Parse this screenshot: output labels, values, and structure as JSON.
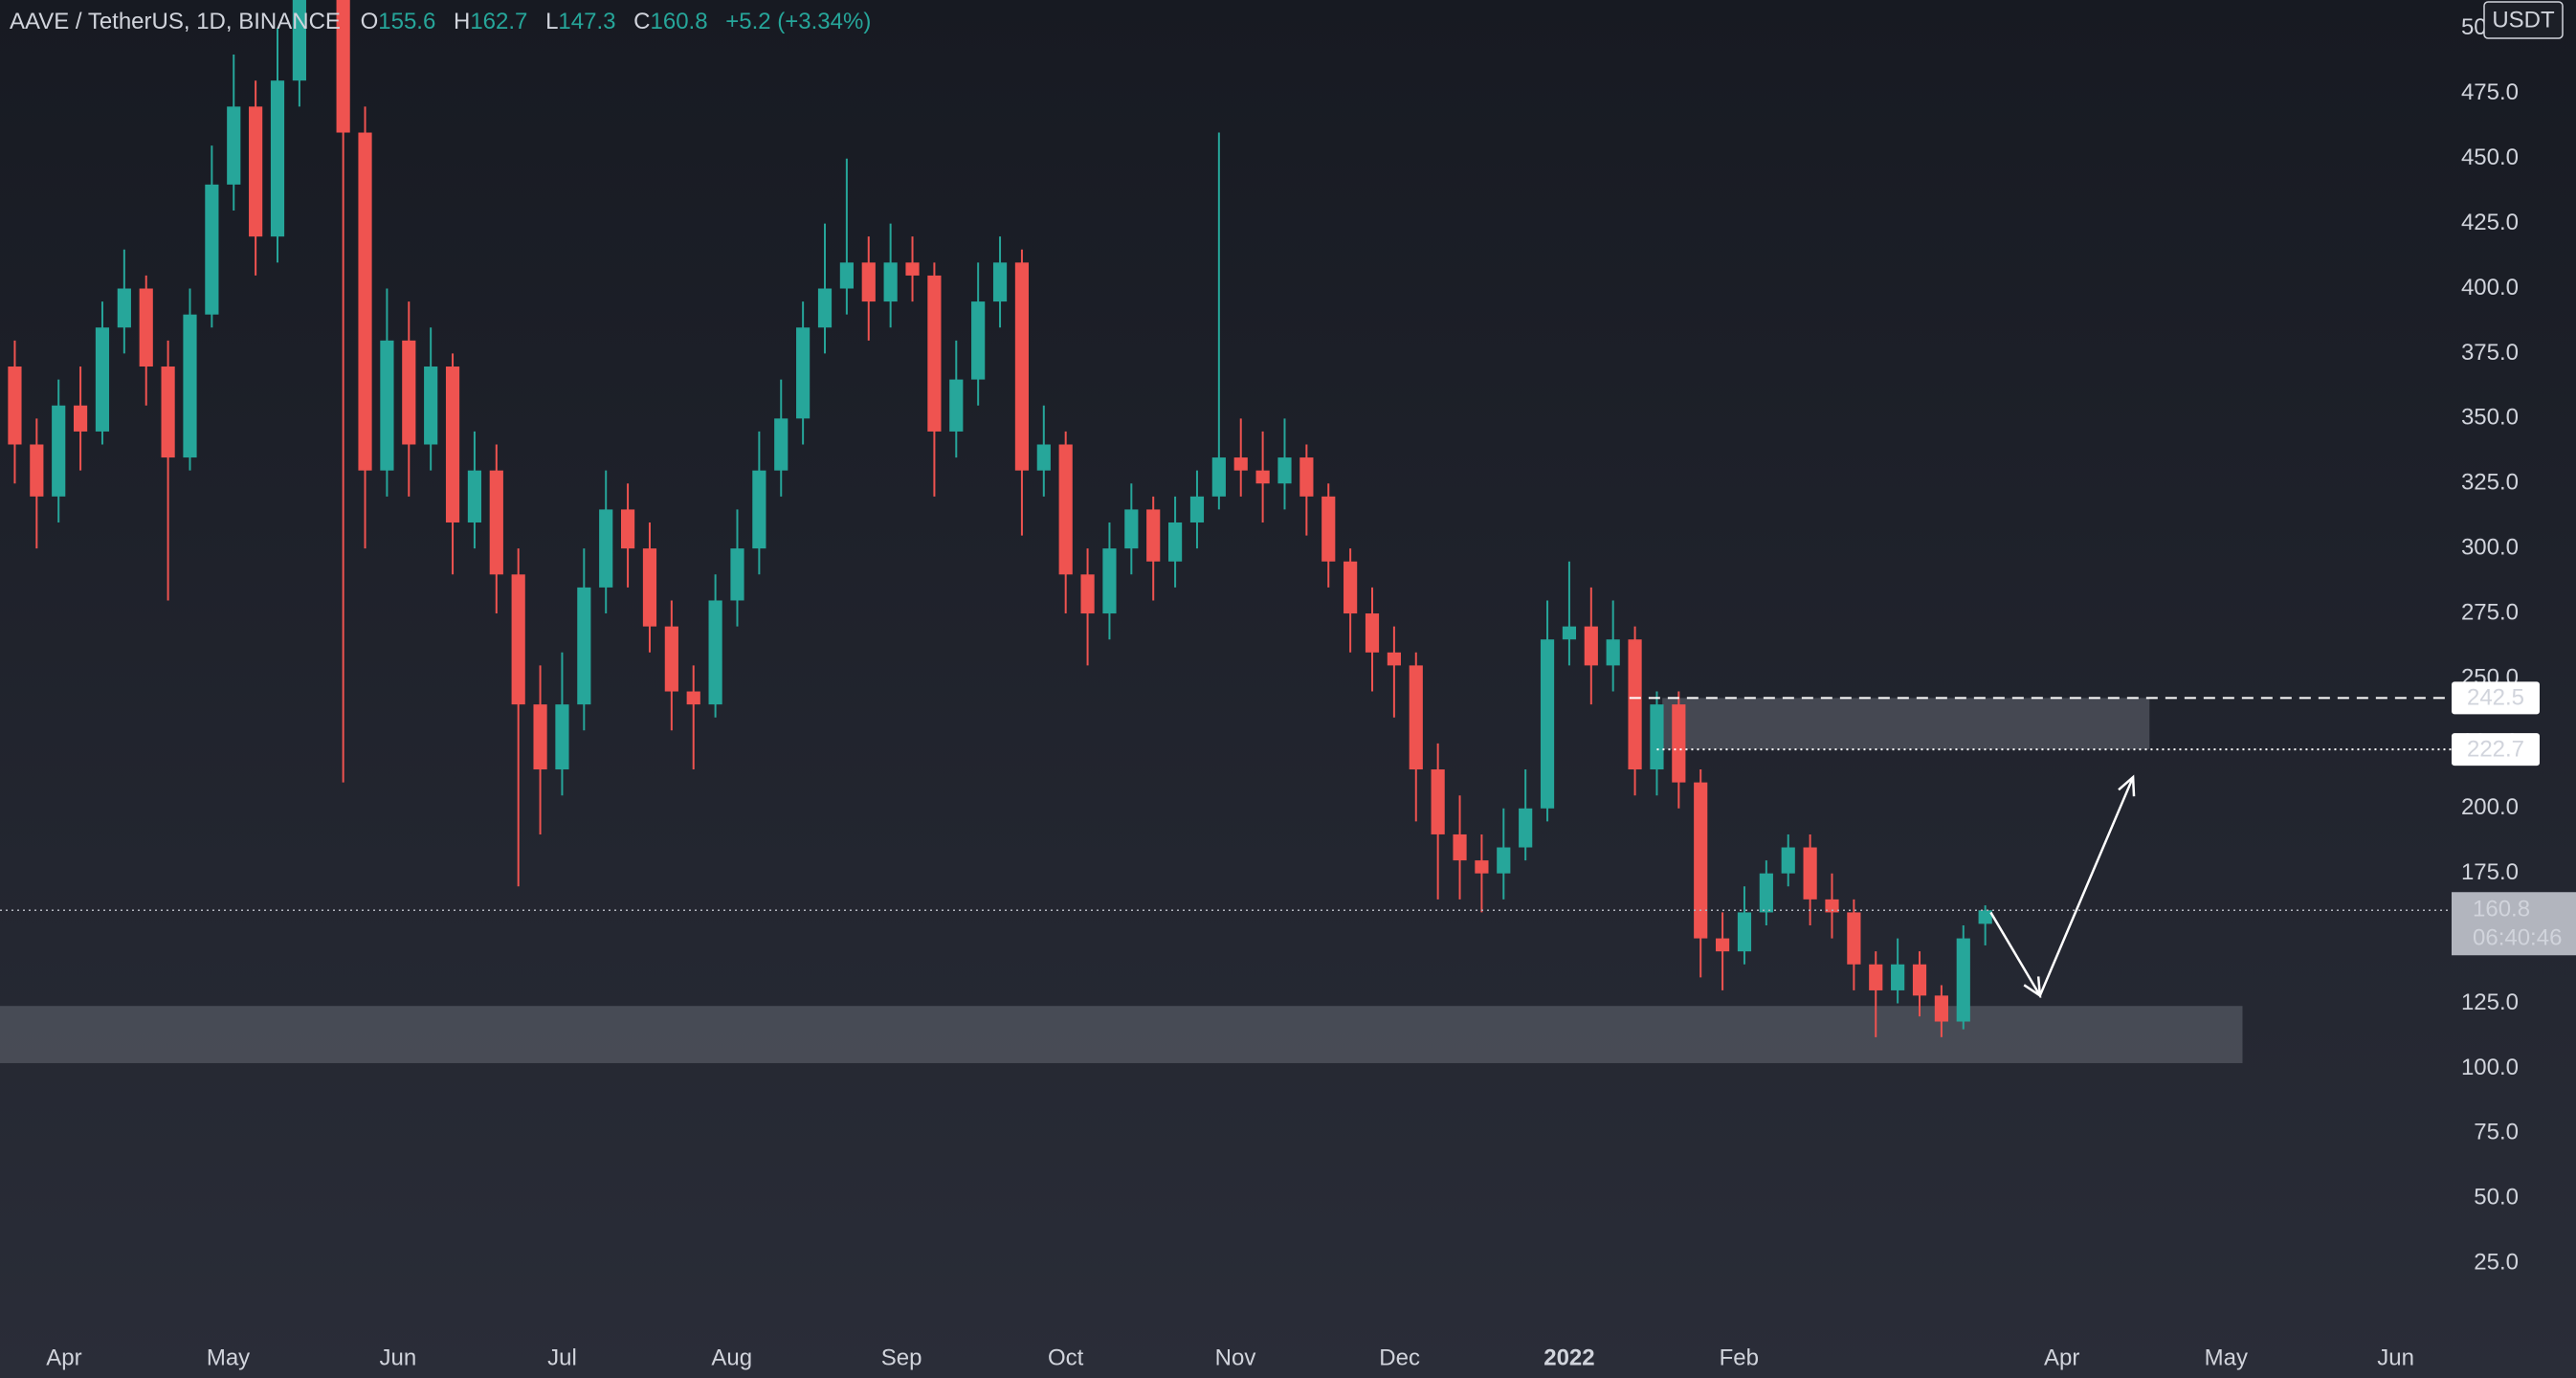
{
  "chart_data": {
    "type": "candlestick",
    "title": "AAVE / TetherUS, 1D, BINANCE",
    "legend_labels": [
      "O",
      "H",
      "L",
      "C"
    ],
    "change": "+5.2 (+3.34%)",
    "currency": "USDT",
    "countdown": "06:40:46",
    "up_color": "#26a69a",
    "down_color": "#ef5350",
    "grid": false,
    "x": [
      -13,
      -9,
      -5,
      -1,
      3,
      7,
      11,
      15,
      19,
      23,
      27,
      31,
      35,
      39,
      43,
      47,
      51,
      55,
      59,
      63,
      67,
      71,
      75,
      79,
      83,
      87,
      91,
      95,
      99,
      103,
      107,
      111,
      115,
      119,
      123,
      127,
      131,
      135,
      139,
      143,
      147,
      151,
      155,
      159,
      163,
      167,
      171,
      175,
      179,
      183,
      187,
      191,
      195,
      199,
      203,
      207,
      211,
      215,
      219,
      223,
      227,
      231,
      235,
      239,
      243,
      247,
      251,
      255,
      259,
      263,
      267,
      271,
      275,
      279,
      283,
      287,
      291,
      295,
      299,
      303,
      307,
      311,
      315,
      319,
      323,
      327,
      331,
      335,
      339,
      343,
      347,
      351
    ],
    "open": [
      360,
      370,
      340,
      320,
      355,
      345,
      385,
      400,
      370,
      335,
      390,
      440,
      470,
      420,
      480,
      560,
      590,
      460,
      330,
      380,
      340,
      370,
      310,
      330,
      290,
      240,
      215,
      240,
      285,
      315,
      300,
      270,
      245,
      240,
      280,
      300,
      330,
      350,
      385,
      400,
      410,
      395,
      410,
      405,
      345,
      365,
      395,
      410,
      330,
      340,
      290,
      275,
      300,
      315,
      295,
      310,
      320,
      335,
      330,
      325,
      335,
      320,
      295,
      275,
      260,
      255,
      215,
      190,
      180,
      175,
      185,
      200,
      265,
      270,
      255,
      265,
      215,
      240,
      210,
      150,
      145,
      160,
      175,
      185,
      165,
      160,
      140,
      130,
      140,
      128,
      118,
      155.6
    ],
    "high": [
      385,
      380,
      350,
      365,
      370,
      395,
      415,
      405,
      380,
      400,
      455,
      490,
      480,
      500,
      580,
      640,
      600,
      470,
      400,
      395,
      385,
      375,
      345,
      340,
      300,
      255,
      260,
      300,
      330,
      325,
      310,
      280,
      255,
      290,
      315,
      345,
      365,
      395,
      425,
      450,
      420,
      425,
      420,
      410,
      380,
      410,
      420,
      415,
      355,
      345,
      300,
      310,
      325,
      320,
      320,
      330,
      460,
      350,
      345,
      350,
      340,
      325,
      300,
      285,
      270,
      260,
      225,
      205,
      190,
      200,
      215,
      280,
      295,
      285,
      280,
      270,
      245,
      245,
      215,
      160,
      170,
      180,
      190,
      190,
      175,
      165,
      145,
      150,
      145,
      132,
      155,
      162.7
    ],
    "low": [
      345,
      325,
      300,
      310,
      330,
      340,
      375,
      355,
      280,
      330,
      385,
      430,
      405,
      410,
      470,
      545,
      210,
      300,
      320,
      320,
      330,
      290,
      300,
      275,
      170,
      190,
      205,
      230,
      275,
      285,
      260,
      230,
      215,
      235,
      270,
      290,
      320,
      340,
      375,
      390,
      380,
      385,
      395,
      320,
      335,
      355,
      385,
      305,
      320,
      275,
      255,
      265,
      290,
      280,
      285,
      300,
      315,
      320,
      310,
      315,
      305,
      285,
      260,
      245,
      235,
      195,
      165,
      165,
      160,
      165,
      180,
      195,
      255,
      240,
      245,
      205,
      205,
      200,
      135,
      130,
      140,
      155,
      170,
      155,
      150,
      130,
      112,
      125,
      120,
      112,
      115,
      147.3
    ],
    "close": [
      370,
      340,
      320,
      355,
      345,
      385,
      400,
      370,
      335,
      390,
      440,
      470,
      420,
      480,
      560,
      590,
      460,
      330,
      380,
      340,
      370,
      310,
      330,
      290,
      240,
      215,
      240,
      285,
      315,
      300,
      270,
      245,
      240,
      280,
      300,
      330,
      350,
      385,
      400,
      410,
      395,
      410,
      405,
      345,
      365,
      395,
      410,
      330,
      340,
      290,
      275,
      300,
      315,
      295,
      310,
      320,
      335,
      330,
      325,
      335,
      320,
      295,
      275,
      260,
      255,
      215,
      190,
      180,
      175,
      185,
      200,
      265,
      270,
      255,
      265,
      215,
      240,
      210,
      150,
      145,
      160,
      175,
      185,
      165,
      160,
      140,
      130,
      140,
      128,
      118,
      150,
      160.8
    ],
    "xlim": [
      -11.7,
      436.2
    ],
    "xticks": [
      {
        "value": 0,
        "label": "Apr"
      },
      {
        "value": 30,
        "label": "May"
      },
      {
        "value": 61,
        "label": "Jun"
      },
      {
        "value": 91,
        "label": "Jul"
      },
      {
        "value": 122,
        "label": "Aug"
      },
      {
        "value": 153,
        "label": "Sep"
      },
      {
        "value": 183,
        "label": "Oct"
      },
      {
        "value": 214,
        "label": "Nov"
      },
      {
        "value": 244,
        "label": "Dec"
      },
      {
        "value": 275,
        "label": "2022"
      },
      {
        "value": 306,
        "label": "Feb"
      },
      {
        "value": 365,
        "label": "Apr"
      },
      {
        "value": 395,
        "label": "May"
      },
      {
        "value": 426,
        "label": "Jun"
      }
    ],
    "ylim": [
      -4.4,
      511
    ],
    "yticks": [
      {
        "value": 25,
        "label": "25.0"
      },
      {
        "value": 50,
        "label": "50.0"
      },
      {
        "value": 75,
        "label": "75.0"
      },
      {
        "value": 100,
        "label": "100.0"
      },
      {
        "value": 125,
        "label": "125.0"
      },
      {
        "value": 150,
        "label": "150.0"
      },
      {
        "value": 175,
        "label": "175.0"
      },
      {
        "value": 200,
        "label": "200.0"
      },
      {
        "value": 225,
        "label": "225.0"
      },
      {
        "value": 250,
        "label": "250.0"
      },
      {
        "value": 275,
        "label": "275.0"
      },
      {
        "value": 300,
        "label": "300.0"
      },
      {
        "value": 325,
        "label": "325.0"
      },
      {
        "value": 350,
        "label": "350.0"
      },
      {
        "value": 375,
        "label": "375.0"
      },
      {
        "value": 400,
        "label": "400.0"
      },
      {
        "value": 425,
        "label": "425.0"
      },
      {
        "value": 450,
        "label": "450.0"
      },
      {
        "value": 475,
        "label": "475.0"
      },
      {
        "value": 500,
        "label": "500.0"
      }
    ],
    "zones": [
      {
        "x": [
          -12,
          398
        ],
        "y": [
          102,
          124
        ]
      },
      {
        "x": [
          292,
          381
        ],
        "y": [
          222.7,
          242.5
        ]
      }
    ],
    "levels": [
      {
        "value": 242.5,
        "from": 286,
        "style": "dashed"
      },
      {
        "value": 222.7,
        "from": 291,
        "style": "dotted"
      }
    ],
    "arrow": {
      "x": [
        352,
        361,
        378
      ],
      "y": [
        160,
        128,
        212
      ]
    }
  }
}
